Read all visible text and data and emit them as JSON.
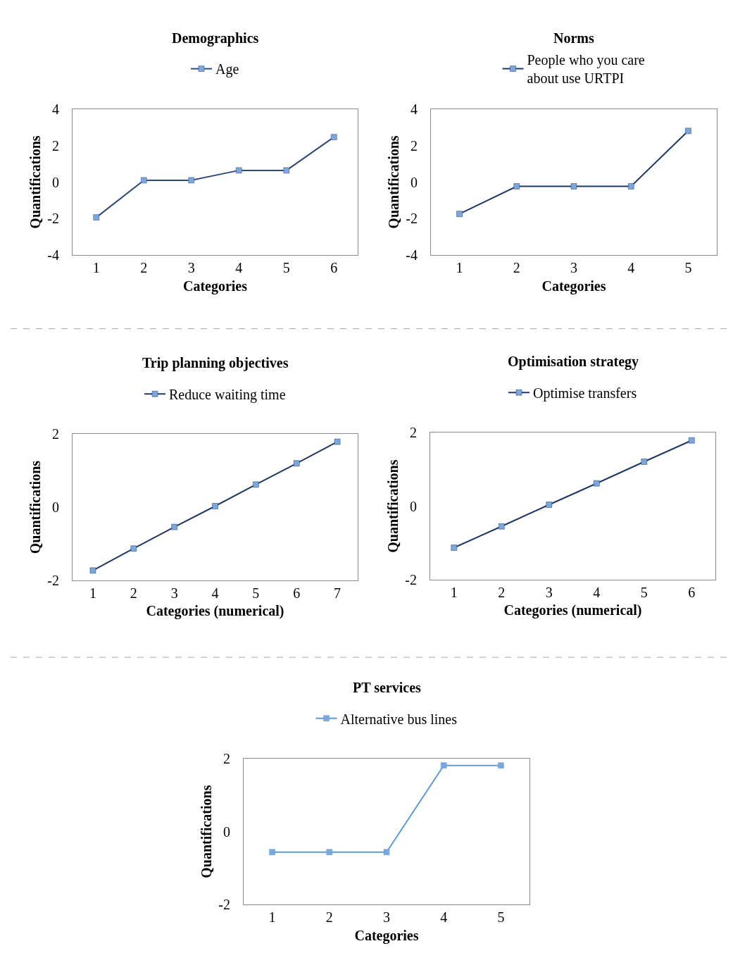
{
  "chart_data": [
    {
      "type": "line",
      "title": "Demographics",
      "xlabel": "Categories",
      "ylabel": "Quantifications",
      "categories": [
        "1",
        "2",
        "3",
        "4",
        "5",
        "6"
      ],
      "ylim": [
        -4,
        4
      ],
      "yticks": [
        -4,
        -2,
        0,
        2,
        4
      ],
      "legend": "top",
      "marker": "square",
      "line_style": "solid",
      "series": [
        {
          "name": "Age",
          "color": "#2e4a7a",
          "colors": [
            "#7ba7dc",
            "#7ba7dc",
            "#7ba7dc",
            "#7ba7dc",
            "#7ba7dc",
            "#7ba7dc"
          ],
          "values": [
            -1.93,
            0.1,
            0.1,
            0.64,
            0.64,
            2.46
          ]
        }
      ]
    },
    {
      "type": "line",
      "title": "Norms",
      "xlabel": "Categories",
      "ylabel": "Quantifications",
      "categories": [
        "1",
        "2",
        "3",
        "4",
        "5"
      ],
      "ylim": [
        -4,
        4
      ],
      "yticks": [
        -4,
        -2,
        0,
        2,
        4
      ],
      "legend": "top",
      "marker": "square",
      "line_style": "solid",
      "series": [
        {
          "name": "People who you care about use URTPI",
          "color": "#1f3864",
          "colors": [
            "#7ba7dc",
            "#7ba7dc",
            "#7ba7dc",
            "#7ba7dc",
            "#7ba7dc"
          ],
          "values": [
            -1.74,
            -0.23,
            -0.23,
            -0.23,
            2.8
          ]
        }
      ]
    },
    {
      "type": "line",
      "title": "Trip planning objectives",
      "xlabel": "Categories (numerical)",
      "ylabel": "Quantifications",
      "categories": [
        "1",
        "2",
        "3",
        "4",
        "5",
        "6",
        "7"
      ],
      "ylim": [
        -2,
        2
      ],
      "yticks": [
        -2,
        0,
        2
      ],
      "legend": "top",
      "marker": "square",
      "line_style": "solid",
      "series": [
        {
          "name": "Reduce waiting time",
          "color": "#1f3864",
          "colors": [
            "#7ba7dc",
            "#7ba7dc",
            "#7ba7dc",
            "#7ba7dc",
            "#7ba7dc",
            "#7ba7dc",
            "#7ba7dc"
          ],
          "values": [
            -1.73,
            -1.13,
            -0.54,
            0.03,
            0.62,
            1.2,
            1.79
          ]
        }
      ]
    },
    {
      "type": "line",
      "title": "Optimisation strategy",
      "xlabel": "Categories (numerical)",
      "ylabel": "Quantifications",
      "categories": [
        "1",
        "2",
        "3",
        "4",
        "5",
        "6"
      ],
      "ylim": [
        -2,
        2
      ],
      "yticks": [
        -2,
        0,
        2
      ],
      "legend": "top",
      "marker": "square",
      "line_style": "solid",
      "series": [
        {
          "name": "Optimise transfers",
          "color": "#1f3864",
          "colors": [
            "#7ba7dc",
            "#7ba7dc",
            "#7ba7dc",
            "#7ba7dc",
            "#7ba7dc",
            "#7ba7dc"
          ],
          "values": [
            -1.13,
            -0.55,
            0.04,
            0.62,
            1.21,
            1.79
          ]
        }
      ]
    },
    {
      "type": "line",
      "title": "PT services",
      "xlabel": "Categories",
      "ylabel": "Quantifications",
      "categories": [
        "1",
        "2",
        "3",
        "4",
        "5"
      ],
      "ylim": [
        -2,
        2
      ],
      "yticks": [
        -2,
        0,
        2
      ],
      "legend": "top",
      "marker": "square",
      "line_style": "solid",
      "series": [
        {
          "name": "Alternative bus lines",
          "color": "#5b9bd5",
          "colors": [
            "#7ba7dc",
            "#7ba7dc",
            "#7ba7dc",
            "#7ba7dc",
            "#7ba7dc"
          ],
          "values": [
            -0.56,
            -0.56,
            -0.56,
            1.81,
            1.81
          ]
        }
      ]
    }
  ]
}
